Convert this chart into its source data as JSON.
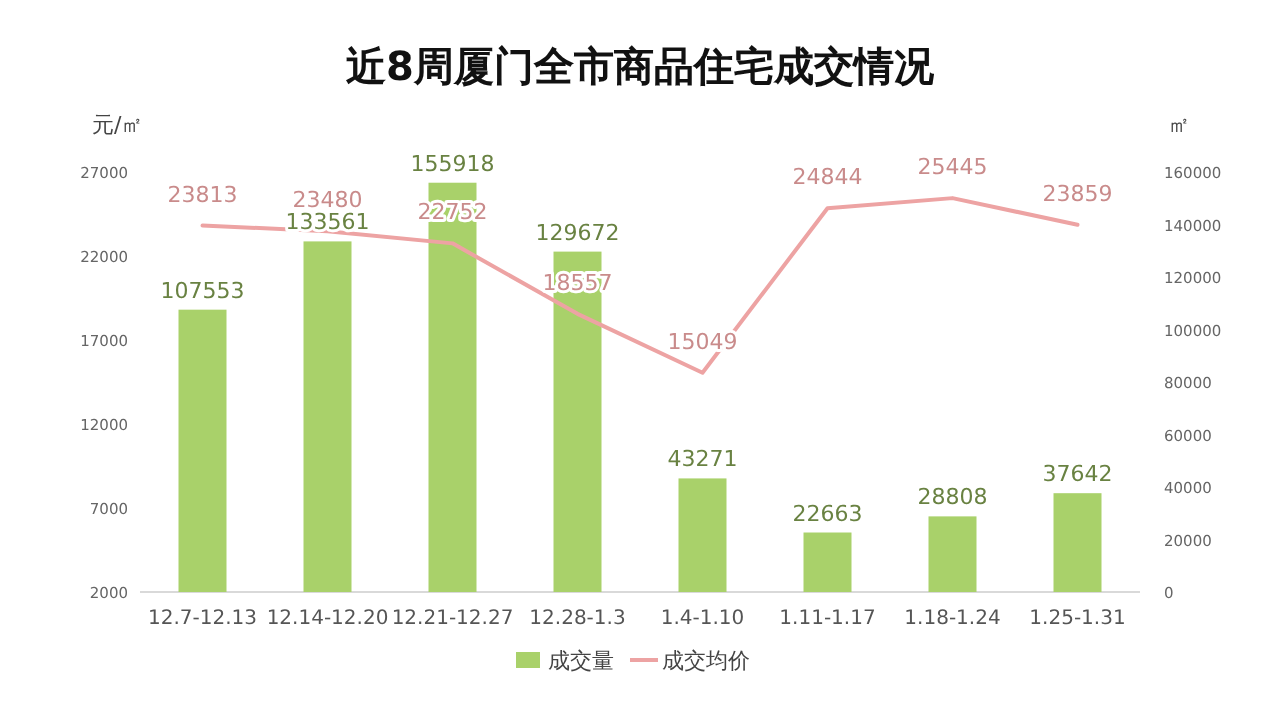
{
  "chart_data": {
    "type": "bar",
    "title": "近8周厦门全市商品住宅成交情况",
    "categories": [
      "12.7-12.13",
      "12.14-12.20",
      "12.21-12.27",
      "12.28-1.3",
      "1.4-1.10",
      "1.11-1.17",
      "1.18-1.24",
      "1.25-1.31"
    ],
    "series": [
      {
        "name": "成交量",
        "axis": "y2",
        "color": "#a9d16a",
        "values": [
          107553,
          133561,
          155918,
          129672,
          43271,
          22663,
          28808,
          37642
        ]
      },
      {
        "name": "成交均价",
        "type": "line",
        "axis": "y",
        "color": "#eda3a3",
        "values": [
          23813,
          23480,
          22752,
          18557,
          15049,
          24844,
          25445,
          23859
        ]
      }
    ],
    "ylabel": "元/㎡",
    "y2label": "㎡",
    "ylim": [
      2000,
      27000
    ],
    "yticks": [
      2000,
      7000,
      12000,
      17000,
      22000,
      27000
    ],
    "y2lim": [
      0,
      160000
    ],
    "y2ticks": [
      0,
      20000,
      40000,
      60000,
      80000,
      100000,
      120000,
      140000,
      160000
    ],
    "data_labels": true,
    "legend": "bottom"
  }
}
